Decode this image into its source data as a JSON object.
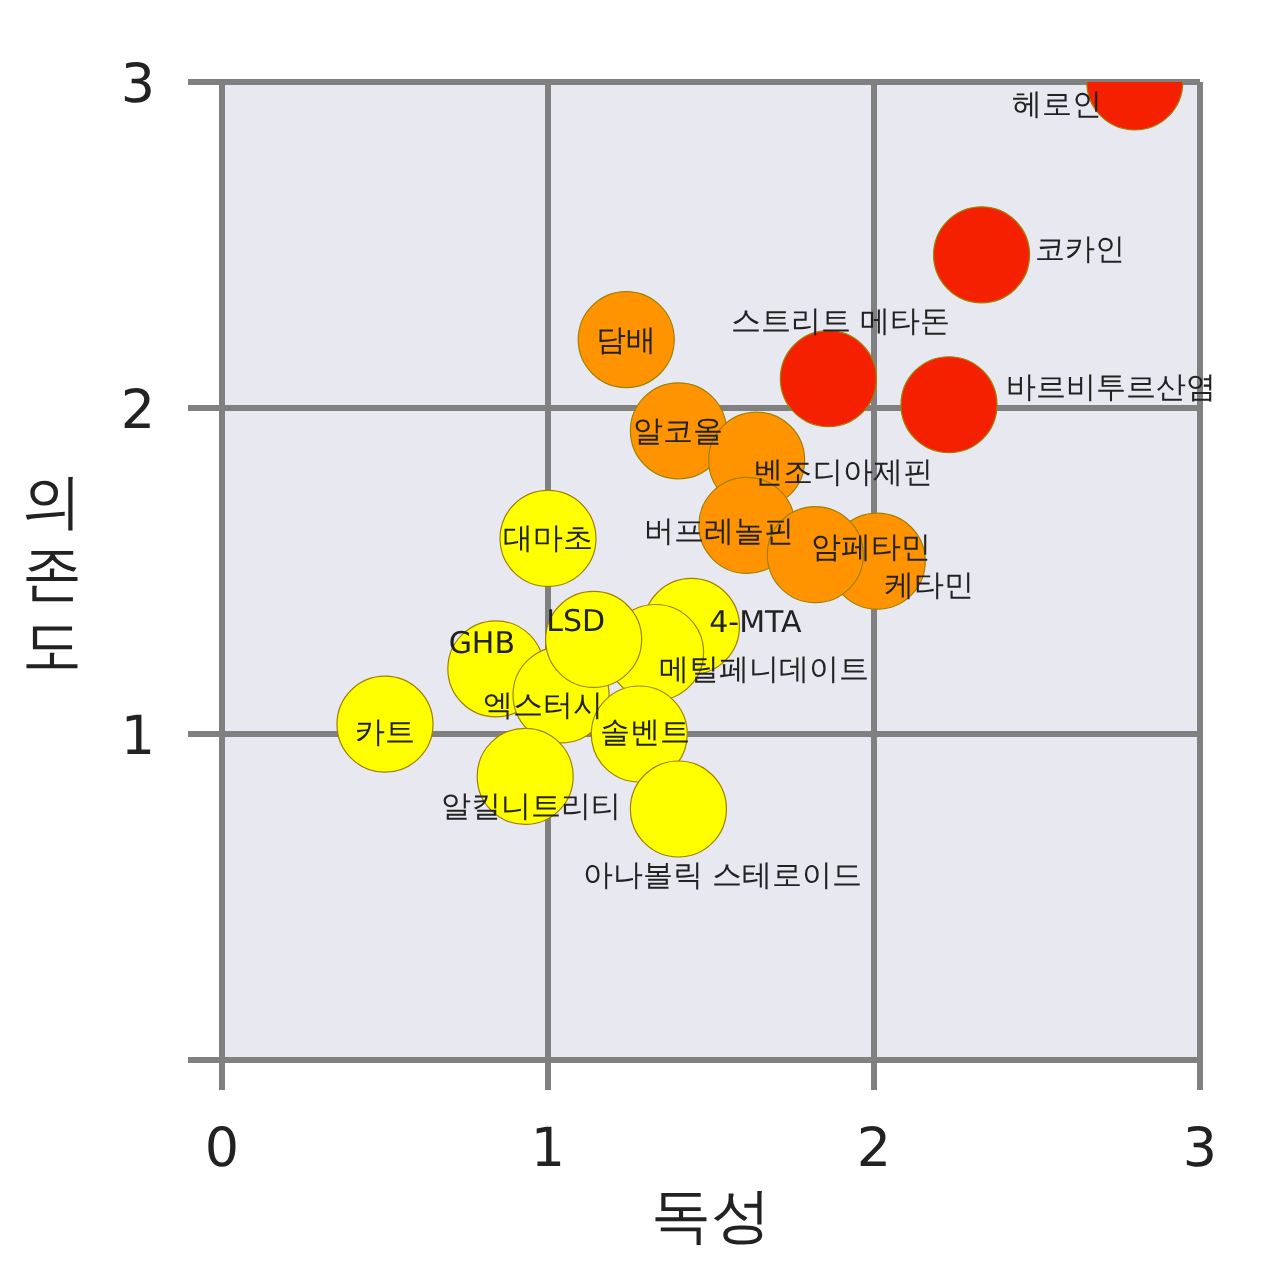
{
  "chart_data": {
    "type": "scatter",
    "xlabel": "독성",
    "ylabel": "의존도",
    "xlim": [
      0,
      3
    ],
    "ylim": [
      0,
      3
    ],
    "xticks": [
      0,
      1,
      2,
      3
    ],
    "yticks": [
      {
        "value": 0,
        "label": null
      },
      1,
      2,
      3
    ],
    "grid": true,
    "marker": "circle",
    "series": [
      {
        "name": "헤로인",
        "color": "#f52000",
        "x": [
          2.8
        ],
        "values": [
          3.0
        ]
      },
      {
        "name": "코카인",
        "color": "#f52000",
        "x": [
          2.33
        ],
        "values": [
          2.47
        ]
      },
      {
        "name": "스트리트 메타돈",
        "color": "#f52000",
        "x": [
          1.86
        ],
        "values": [
          2.09
        ]
      },
      {
        "name": "바르비투르산염",
        "color": "#f52000",
        "x": [
          2.23
        ],
        "values": [
          2.01
        ]
      },
      {
        "name": "담배",
        "color": "#ff9400",
        "x": [
          1.24
        ],
        "values": [
          2.21
        ]
      },
      {
        "name": "알코올",
        "color": "#ff9400",
        "x": [
          1.4
        ],
        "values": [
          1.93
        ]
      },
      {
        "name": "벤조디아제핀",
        "color": "#ff9400",
        "x": [
          1.64
        ],
        "values": [
          1.84
        ]
      },
      {
        "name": "버프레놀핀",
        "color": "#ff9400",
        "x": [
          1.61
        ],
        "values": [
          1.64
        ]
      },
      {
        "name": "케타민",
        "color": "#ff9400",
        "x": [
          2.01
        ],
        "values": [
          1.53
        ]
      },
      {
        "name": "암페타민",
        "color": "#ff9400",
        "x": [
          1.82
        ],
        "values": [
          1.55
        ]
      },
      {
        "name": "대마초",
        "color": "#ffff00",
        "x": [
          1.0
        ],
        "values": [
          1.6
        ]
      },
      {
        "name": "4-MTA",
        "color": "#ffff00",
        "x": [
          1.44
        ],
        "values": [
          1.33
        ]
      },
      {
        "name": "GHB",
        "color": "#ffff00",
        "x": [
          0.84
        ],
        "values": [
          1.2
        ]
      },
      {
        "name": "엑스터시",
        "color": "#ffff00",
        "x": [
          1.04
        ],
        "values": [
          1.12
        ]
      },
      {
        "name": "메틸페니데이트",
        "color": "#ffff00",
        "x": [
          1.33
        ],
        "values": [
          1.25
        ]
      },
      {
        "name": "솔벤트",
        "color": "#ffff00",
        "x": [
          1.28
        ],
        "values": [
          1.0
        ]
      },
      {
        "name": "카트",
        "color": "#ffff00",
        "x": [
          0.5
        ],
        "values": [
          1.03
        ]
      },
      {
        "name": "알킬니트리티",
        "color": "#ffff00",
        "x": [
          0.93
        ],
        "values": [
          0.87
        ]
      },
      {
        "name": "아나볼릭 스테로이드",
        "color": "#ffff00",
        "x": [
          1.4
        ],
        "values": [
          0.77
        ]
      },
      {
        "name": "LSD",
        "color": "#ffff00",
        "x": [
          1.14
        ],
        "values": [
          1.29
        ]
      }
    ]
  }
}
